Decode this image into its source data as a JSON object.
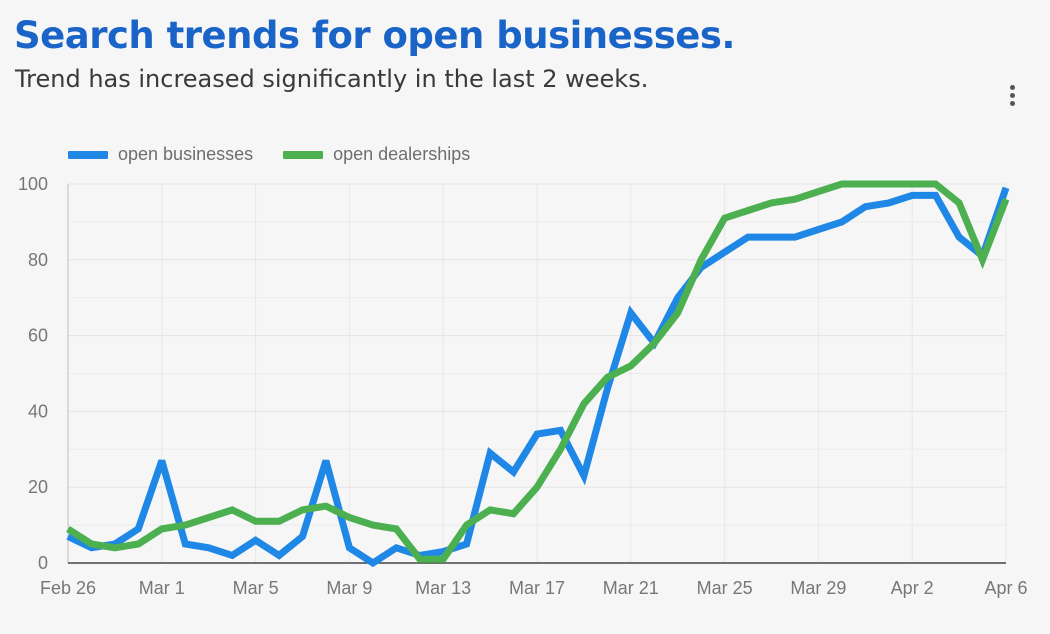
{
  "header": {
    "title": "Search trends for open businesses.",
    "subtitle": "Trend has increased significantly in the last 2 weeks."
  },
  "menu": {
    "icon": "more-vertical-icon"
  },
  "colors": {
    "title": "#1a64c8",
    "series_1": "#1f87e5",
    "series_2": "#4caf50"
  },
  "chart_data": {
    "type": "line",
    "x": [
      "Feb 26",
      "Feb 27",
      "Feb 28",
      "Feb 29",
      "Mar 1",
      "Mar 2",
      "Mar 3",
      "Mar 4",
      "Mar 5",
      "Mar 6",
      "Mar 7",
      "Mar 8",
      "Mar 9",
      "Mar 10",
      "Mar 11",
      "Mar 12",
      "Mar 13",
      "Mar 14",
      "Mar 15",
      "Mar 16",
      "Mar 17",
      "Mar 18",
      "Mar 19",
      "Mar 20",
      "Mar 21",
      "Mar 22",
      "Mar 23",
      "Mar 24",
      "Mar 25",
      "Mar 26",
      "Mar 27",
      "Mar 28",
      "Mar 29",
      "Mar 30",
      "Mar 31",
      "Apr 1",
      "Apr 2",
      "Apr 3",
      "Apr 4",
      "Apr 5",
      "Apr 6"
    ],
    "x_tick_labels": [
      "Feb 26",
      "Mar 1",
      "Mar 5",
      "Mar 9",
      "Mar 13",
      "Mar 17",
      "Mar 21",
      "Mar 25",
      "Mar 29",
      "Apr 2",
      "Apr 6"
    ],
    "y_ticks": [
      "0",
      "20",
      "40",
      "60",
      "80",
      "100"
    ],
    "ylim": [
      0,
      100
    ],
    "grid": true,
    "legend_position": "top-left",
    "series": [
      {
        "name": "open businesses",
        "color": "#1f87e5",
        "values": [
          7,
          4,
          5,
          9,
          27,
          5,
          4,
          2,
          6,
          2,
          7,
          27,
          4,
          0,
          4,
          2,
          3,
          5,
          29,
          24,
          34,
          35,
          23,
          46,
          66,
          58,
          70,
          78,
          82,
          86,
          86,
          86,
          88,
          90,
          94,
          95,
          97,
          97,
          86,
          81,
          99
        ]
      },
      {
        "name": "open dealerships",
        "color": "#4caf50",
        "values": [
          9,
          5,
          4,
          5,
          9,
          10,
          12,
          14,
          11,
          11,
          14,
          15,
          12,
          10,
          9,
          1,
          1,
          10,
          14,
          13,
          20,
          30,
          42,
          49,
          52,
          58,
          66,
          80,
          91,
          93,
          95,
          96,
          98,
          100,
          100,
          100,
          100,
          100,
          95,
          80,
          96
        ]
      }
    ]
  }
}
